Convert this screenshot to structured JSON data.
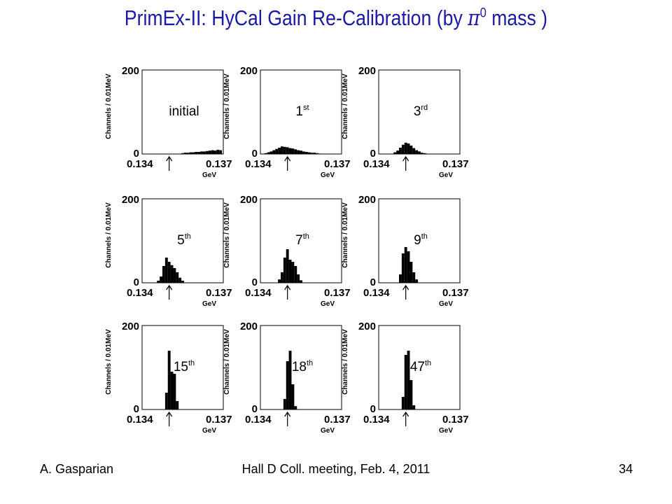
{
  "slide": {
    "title_prefix": "PrimEx-II: HyCal Gain Re-Calibration (by ",
    "title_symbol": "π",
    "title_symbol_sup": "0",
    "title_suffix": " mass )",
    "footer_left": "A. Gasparian",
    "footer_center": "Hall D Coll. meeting, Feb. 4, 2011",
    "page_number": "34"
  },
  "colors": {
    "title": "#1a1aa6",
    "histogram": "#000000"
  },
  "chart_data": [
    {
      "type": "bar",
      "label": "initial",
      "label_sup": "",
      "xlabel": "GeV",
      "ylabel": "Channels / 0.01MeV",
      "ylim": [
        0,
        200
      ],
      "xlim": [
        0.134,
        0.137
      ],
      "x_ticks": [
        "0.134",
        "0.137"
      ],
      "y_ticks": [
        "0",
        "200"
      ],
      "marker_x": 0.135,
      "bins": {
        "x": [
          0.1355,
          0.1356,
          0.1357,
          0.1358,
          0.1359,
          0.136,
          0.1361,
          0.1362,
          0.1363,
          0.1364,
          0.1365,
          0.1366,
          0.1367,
          0.1368,
          0.1369
        ],
        "y": [
          2,
          3,
          3,
          4,
          4,
          5,
          5,
          6,
          6,
          7,
          8,
          9,
          8,
          10,
          9
        ]
      }
    },
    {
      "type": "bar",
      "label": "1",
      "label_sup": "st",
      "xlabel": "GeV",
      "ylabel": "Channels / 0.01MeV",
      "ylim": [
        0,
        200
      ],
      "xlim": [
        0.134,
        0.137
      ],
      "x_ticks": [
        "0.134",
        "0.137"
      ],
      "y_ticks": [
        "0",
        "200"
      ],
      "marker_x": 0.135,
      "bins": {
        "x": [
          0.1342,
          0.1343,
          0.1344,
          0.1345,
          0.1346,
          0.1347,
          0.1348,
          0.1349,
          0.135,
          0.1351,
          0.1352,
          0.1353,
          0.1354,
          0.1355,
          0.1356,
          0.1357,
          0.1358,
          0.1359,
          0.136,
          0.1361,
          0.1362
        ],
        "y": [
          2,
          4,
          6,
          9,
          12,
          15,
          18,
          17,
          16,
          14,
          13,
          11,
          9,
          8,
          6,
          5,
          4,
          3,
          3,
          2,
          1
        ]
      }
    },
    {
      "type": "bar",
      "label": "3",
      "label_sup": "rd",
      "xlabel": "GeV",
      "ylabel": "Channels / 0.01MeV",
      "ylim": [
        0,
        200
      ],
      "xlim": [
        0.134,
        0.137
      ],
      "x_ticks": [
        "0.134",
        "0.137"
      ],
      "y_ticks": [
        "0",
        "200"
      ],
      "marker_x": 0.135,
      "bins": {
        "x": [
          0.1346,
          0.1347,
          0.1348,
          0.1349,
          0.135,
          0.1351,
          0.1352,
          0.1353,
          0.1354,
          0.1355,
          0.1356,
          0.1357
        ],
        "y": [
          4,
          8,
          15,
          22,
          27,
          25,
          20,
          14,
          9,
          6,
          3,
          2
        ]
      }
    },
    {
      "type": "bar",
      "label": "5",
      "label_sup": "th",
      "xlabel": "GeV",
      "ylabel": "Channels / 0.01MeV",
      "ylim": [
        0,
        200
      ],
      "xlim": [
        0.134,
        0.137
      ],
      "x_ticks": [
        "0.134",
        "0.137"
      ],
      "y_ticks": [
        "0",
        "200"
      ],
      "marker_x": 0.135,
      "bins": {
        "x": [
          0.1346,
          0.1347,
          0.1348,
          0.1349,
          0.135,
          0.1351,
          0.1352,
          0.1353,
          0.1354,
          0.1355
        ],
        "y": [
          5,
          15,
          40,
          60,
          50,
          42,
          35,
          25,
          12,
          5
        ]
      }
    },
    {
      "type": "bar",
      "label": "7",
      "label_sup": "th",
      "xlabel": "GeV",
      "ylabel": "Channels / 0.01MeV",
      "ylim": [
        0,
        200
      ],
      "xlim": [
        0.134,
        0.137
      ],
      "x_ticks": [
        "0.134",
        "0.137"
      ],
      "y_ticks": [
        "0",
        "200"
      ],
      "marker_x": 0.135,
      "bins": {
        "x": [
          0.1347,
          0.1348,
          0.1349,
          0.135,
          0.1351,
          0.1352,
          0.1353,
          0.1354,
          0.1355
        ],
        "y": [
          8,
          25,
          60,
          80,
          55,
          50,
          40,
          20,
          6
        ]
      }
    },
    {
      "type": "bar",
      "label": "9",
      "label_sup": "th",
      "xlabel": "GeV",
      "ylabel": "Channels / 0.01MeV",
      "ylim": [
        0,
        200
      ],
      "xlim": [
        0.134,
        0.137
      ],
      "x_ticks": [
        "0.134",
        "0.137"
      ],
      "y_ticks": [
        "0",
        "200"
      ],
      "marker_x": 0.135,
      "bins": {
        "x": [
          0.1348,
          0.1349,
          0.135,
          0.1351,
          0.1352,
          0.1353,
          0.1354
        ],
        "y": [
          20,
          70,
          85,
          75,
          50,
          25,
          8
        ]
      }
    },
    {
      "type": "bar",
      "label": "15",
      "label_sup": "th",
      "xlabel": "GeV",
      "ylabel": "Channels / 0.01MeV",
      "ylim": [
        0,
        200
      ],
      "xlim": [
        0.134,
        0.137
      ],
      "x_ticks": [
        "0.134",
        "0.137"
      ],
      "y_ticks": [
        "0",
        "200"
      ],
      "marker_x": 0.135,
      "bins": {
        "x": [
          0.1349,
          0.135,
          0.1351,
          0.1352,
          0.1353
        ],
        "y": [
          40,
          140,
          90,
          85,
          20
        ]
      }
    },
    {
      "type": "bar",
      "label": "18",
      "label_sup": "th",
      "xlabel": "GeV",
      "ylabel": "Channels / 0.01MeV",
      "ylim": [
        0,
        200
      ],
      "xlim": [
        0.134,
        0.137
      ],
      "x_ticks": [
        "0.134",
        "0.137"
      ],
      "y_ticks": [
        "0",
        "200"
      ],
      "marker_x": 0.135,
      "bins": {
        "x": [
          0.1349,
          0.135,
          0.1351,
          0.1352,
          0.1353
        ],
        "y": [
          25,
          115,
          140,
          60,
          8
        ]
      }
    },
    {
      "type": "bar",
      "label": "47",
      "label_sup": "th",
      "xlabel": "GeV",
      "ylabel": "Channels / 0.01MeV",
      "ylim": [
        0,
        200
      ],
      "xlim": [
        0.134,
        0.137
      ],
      "x_ticks": [
        "0.134",
        "0.137"
      ],
      "y_ticks": [
        "0",
        "200"
      ],
      "marker_x": 0.135,
      "bins": {
        "x": [
          0.1349,
          0.135,
          0.1351,
          0.1352,
          0.1353
        ],
        "y": [
          30,
          130,
          140,
          70,
          10
        ]
      }
    }
  ]
}
